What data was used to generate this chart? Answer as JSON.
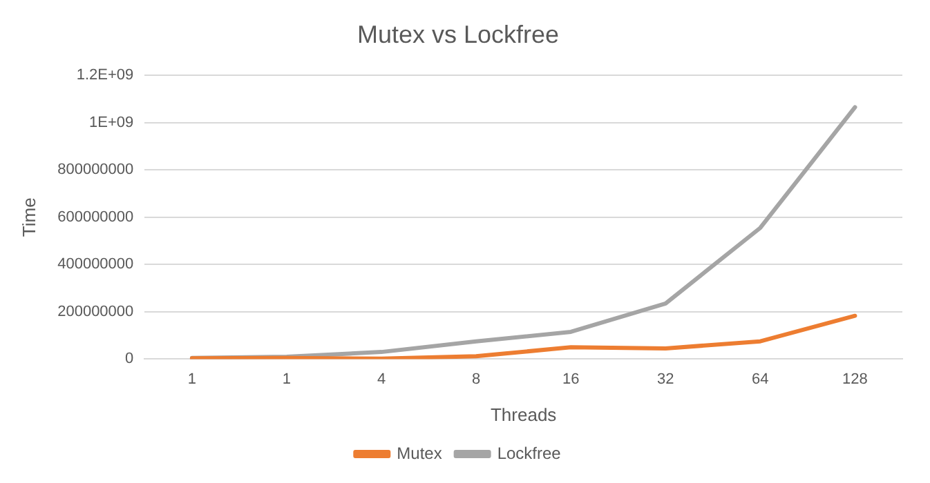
{
  "chart_data": {
    "type": "line",
    "title": "Mutex vs Lockfree",
    "xlabel": "Threads",
    "ylabel": "Time",
    "categories": [
      "1",
      "1",
      "4",
      "8",
      "16",
      "32",
      "64",
      "128"
    ],
    "series": [
      {
        "name": "Mutex",
        "color": "#ed7d31",
        "values": [
          3000000,
          5000000,
          2000000,
          12000000,
          50000000,
          45000000,
          75000000,
          183000000
        ]
      },
      {
        "name": "Lockfree",
        "color": "#a5a5a5",
        "values": [
          5000000,
          10000000,
          30000000,
          75000000,
          115000000,
          235000000,
          555000000,
          1065000000
        ]
      }
    ],
    "ylim": [
      0,
      1200000000
    ],
    "yticks": [
      0,
      200000000,
      400000000,
      600000000,
      800000000,
      {
        "value": 1000000000,
        "label": "1E+09"
      },
      {
        "value": 1200000000,
        "label": "1.2E+09"
      }
    ],
    "grid": "y",
    "legend": "bottom",
    "marker": "none",
    "line_style": "solid"
  }
}
